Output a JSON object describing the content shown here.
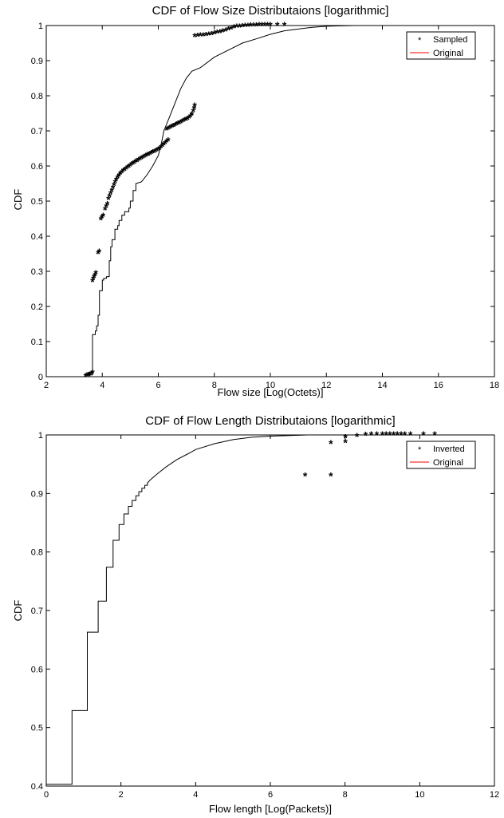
{
  "chart_data": [
    {
      "type": "line",
      "title": "CDF of Flow Size Distributaions [logarithmic]",
      "xlabel": "Flow size [Log(Octets)]",
      "ylabel": "CDF",
      "xlim": [
        2,
        18
      ],
      "ylim": [
        0,
        1
      ],
      "xticks": [
        "2",
        "4",
        "6",
        "8",
        "10",
        "12",
        "14",
        "16",
        "18"
      ],
      "yticks": [
        "0",
        "0.1",
        "0.2",
        "0.3",
        "0.4",
        "0.5",
        "0.6",
        "0.7",
        "0.8",
        "0.9",
        "1"
      ],
      "grid": false,
      "legend_position": "top-right",
      "legend": [
        {
          "label": "Sampled",
          "marker": "*",
          "color": "#0000ff"
        },
        {
          "label": "Original",
          "line": true,
          "color": "#ff0000"
        }
      ],
      "series": [
        {
          "name": "Sampled",
          "style": "markers",
          "color": "#000000",
          "points": [
            [
              3.4,
              0.0
            ],
            [
              3.45,
              0.002
            ],
            [
              3.5,
              0.003
            ],
            [
              3.55,
              0.005
            ],
            [
              3.6,
              0.007
            ],
            [
              3.65,
              0.01
            ],
            [
              3.65,
              0.27
            ],
            [
              3.68,
              0.277
            ],
            [
              3.71,
              0.283
            ],
            [
              3.74,
              0.288
            ],
            [
              3.77,
              0.293
            ],
            [
              3.85,
              0.35
            ],
            [
              3.89,
              0.355
            ],
            [
              3.95,
              0.447
            ],
            [
              3.99,
              0.452
            ],
            [
              4.03,
              0.457
            ],
            [
              4.1,
              0.475
            ],
            [
              4.14,
              0.483
            ],
            [
              4.18,
              0.49
            ],
            [
              4.22,
              0.505
            ],
            [
              4.26,
              0.512
            ],
            [
              4.3,
              0.52
            ],
            [
              4.34,
              0.528
            ],
            [
              4.38,
              0.536
            ],
            [
              4.42,
              0.544
            ],
            [
              4.46,
              0.552
            ],
            [
              4.5,
              0.559
            ],
            [
              4.55,
              0.566
            ],
            [
              4.6,
              0.572
            ],
            [
              4.65,
              0.577
            ],
            [
              4.7,
              0.581
            ],
            [
              4.75,
              0.585
            ],
            [
              4.8,
              0.588
            ],
            [
              4.85,
              0.591
            ],
            [
              4.9,
              0.594
            ],
            [
              4.95,
              0.597
            ],
            [
              5.0,
              0.6
            ],
            [
              5.05,
              0.603
            ],
            [
              5.1,
              0.606
            ],
            [
              5.15,
              0.608
            ],
            [
              5.2,
              0.611
            ],
            [
              5.25,
              0.613
            ],
            [
              5.3,
              0.616
            ],
            [
              5.35,
              0.618
            ],
            [
              5.4,
              0.62
            ],
            [
              5.45,
              0.623
            ],
            [
              5.5,
              0.625
            ],
            [
              5.55,
              0.627
            ],
            [
              5.6,
              0.629
            ],
            [
              5.65,
              0.631
            ],
            [
              5.7,
              0.633
            ],
            [
              5.75,
              0.635
            ],
            [
              5.8,
              0.637
            ],
            [
              5.85,
              0.639
            ],
            [
              5.9,
              0.641
            ],
            [
              5.95,
              0.643
            ],
            [
              6.0,
              0.645
            ],
            [
              6.05,
              0.648
            ],
            [
              6.1,
              0.652
            ],
            [
              6.15,
              0.656
            ],
            [
              6.2,
              0.66
            ],
            [
              6.25,
              0.664
            ],
            [
              6.3,
              0.668
            ],
            [
              6.35,
              0.672
            ],
            [
              6.3,
              0.702
            ],
            [
              6.35,
              0.705
            ],
            [
              6.4,
              0.707
            ],
            [
              6.45,
              0.709
            ],
            [
              6.5,
              0.711
            ],
            [
              6.55,
              0.713
            ],
            [
              6.6,
              0.715
            ],
            [
              6.65,
              0.717
            ],
            [
              6.7,
              0.719
            ],
            [
              6.75,
              0.721
            ],
            [
              6.8,
              0.723
            ],
            [
              6.85,
              0.725
            ],
            [
              6.9,
              0.727
            ],
            [
              6.95,
              0.729
            ],
            [
              7.0,
              0.731
            ],
            [
              7.05,
              0.733
            ],
            [
              7.1,
              0.736
            ],
            [
              7.15,
              0.74
            ],
            [
              7.2,
              0.745
            ],
            [
              7.25,
              0.755
            ],
            [
              7.28,
              0.763
            ],
            [
              7.3,
              0.77
            ],
            [
              7.3,
              0.968
            ],
            [
              7.4,
              0.969
            ],
            [
              7.5,
              0.97
            ],
            [
              7.6,
              0.971
            ],
            [
              7.7,
              0.972
            ],
            [
              7.8,
              0.973
            ],
            [
              7.9,
              0.974
            ],
            [
              8.0,
              0.976
            ],
            [
              8.1,
              0.978
            ],
            [
              8.2,
              0.98
            ],
            [
              8.3,
              0.982
            ],
            [
              8.4,
              0.984
            ],
            [
              8.5,
              0.987
            ],
            [
              8.6,
              0.99
            ],
            [
              8.7,
              0.993
            ],
            [
              8.8,
              0.995
            ],
            [
              8.9,
              0.996
            ],
            [
              9.0,
              0.997
            ],
            [
              9.1,
              0.998
            ],
            [
              9.2,
              0.998
            ],
            [
              9.3,
              0.999
            ],
            [
              9.4,
              0.999
            ],
            [
              9.5,
              0.999
            ],
            [
              9.6,
              1.0
            ],
            [
              9.7,
              1.0
            ],
            [
              9.8,
              1.0
            ],
            [
              9.9,
              1.0
            ],
            [
              10.0,
              1.0
            ],
            [
              10.25,
              1.0
            ],
            [
              10.5,
              1.0
            ]
          ]
        },
        {
          "name": "Original",
          "style": "step-line",
          "color": "#000000",
          "points": [
            [
              3.55,
              0.0
            ],
            [
              3.55,
              0.005
            ],
            [
              3.65,
              0.005
            ],
            [
              3.65,
              0.12
            ],
            [
              3.75,
              0.12
            ],
            [
              3.75,
              0.13
            ],
            [
              3.8,
              0.13
            ],
            [
              3.8,
              0.145
            ],
            [
              3.85,
              0.145
            ],
            [
              3.85,
              0.175
            ],
            [
              3.9,
              0.175
            ],
            [
              3.9,
              0.245
            ],
            [
              4.0,
              0.245
            ],
            [
              4.0,
              0.275
            ],
            [
              4.05,
              0.275
            ],
            [
              4.05,
              0.28
            ],
            [
              4.15,
              0.28
            ],
            [
              4.15,
              0.285
            ],
            [
              4.25,
              0.285
            ],
            [
              4.25,
              0.33
            ],
            [
              4.3,
              0.33
            ],
            [
              4.3,
              0.37
            ],
            [
              4.35,
              0.37
            ],
            [
              4.35,
              0.39
            ],
            [
              4.45,
              0.39
            ],
            [
              4.45,
              0.42
            ],
            [
              4.55,
              0.42
            ],
            [
              4.55,
              0.43
            ],
            [
              4.6,
              0.43
            ],
            [
              4.6,
              0.445
            ],
            [
              4.7,
              0.445
            ],
            [
              4.7,
              0.46
            ],
            [
              4.8,
              0.46
            ],
            [
              4.8,
              0.47
            ],
            [
              4.95,
              0.47
            ],
            [
              4.95,
              0.48
            ],
            [
              5.0,
              0.48
            ],
            [
              5.0,
              0.5
            ],
            [
              5.1,
              0.5
            ],
            [
              5.1,
              0.53
            ],
            [
              5.2,
              0.53
            ],
            [
              5.2,
              0.55
            ],
            [
              5.4,
              0.555
            ],
            [
              5.6,
              0.575
            ],
            [
              5.8,
              0.6
            ],
            [
              6.0,
              0.63
            ],
            [
              6.1,
              0.66
            ],
            [
              6.2,
              0.7
            ],
            [
              6.4,
              0.74
            ],
            [
              6.6,
              0.78
            ],
            [
              6.8,
              0.82
            ],
            [
              7.0,
              0.85
            ],
            [
              7.2,
              0.87
            ],
            [
              7.5,
              0.88
            ],
            [
              8.0,
              0.91
            ],
            [
              8.5,
              0.93
            ],
            [
              9.0,
              0.95
            ],
            [
              9.5,
              0.962
            ],
            [
              10.0,
              0.975
            ],
            [
              10.5,
              0.985
            ],
            [
              11.0,
              0.99
            ],
            [
              11.5,
              0.995
            ],
            [
              12.0,
              0.998
            ],
            [
              12.5,
              0.999
            ],
            [
              13.0,
              1.0
            ],
            [
              14.0,
              1.0
            ]
          ]
        }
      ]
    },
    {
      "type": "line",
      "title": "CDF of Flow Length Distributaions [logarithmic]",
      "xlabel": "Flow length [Log(Packets)]",
      "ylabel": "CDF",
      "xlim": [
        0,
        12
      ],
      "ylim": [
        0.4,
        1
      ],
      "xticks": [
        "0",
        "2",
        "4",
        "6",
        "8",
        "10",
        "12"
      ],
      "yticks": [
        "0.4",
        "0.5",
        "0.6",
        "0.7",
        "0.8",
        "0.9",
        "1"
      ],
      "grid": false,
      "legend_position": "top-right",
      "legend": [
        {
          "label": "Inverted",
          "marker": "*",
          "color": "#0000ff"
        },
        {
          "label": "Original",
          "line": true,
          "color": "#ff0000"
        }
      ],
      "series": [
        {
          "name": "Inverted",
          "style": "markers",
          "color": "#000000",
          "points": [
            [
              6.93,
              0.93
            ],
            [
              7.62,
              0.93
            ],
            [
              7.62,
              0.985
            ],
            [
              8.01,
              0.987
            ],
            [
              8.01,
              0.995
            ],
            [
              8.32,
              0.997
            ],
            [
              8.55,
              0.999
            ],
            [
              8.7,
              1.0
            ],
            [
              8.85,
              1.0
            ],
            [
              9.0,
              1.0
            ],
            [
              9.1,
              1.0
            ],
            [
              9.2,
              1.0
            ],
            [
              9.3,
              1.0
            ],
            [
              9.4,
              1.0
            ],
            [
              9.5,
              1.0
            ],
            [
              9.6,
              1.0
            ],
            [
              9.75,
              1.0
            ],
            [
              10.1,
              1.0
            ],
            [
              10.4,
              1.0
            ]
          ]
        },
        {
          "name": "Original",
          "style": "step-line",
          "color": "#000000",
          "points": [
            [
              0.0,
              0.403
            ],
            [
              0.69,
              0.403
            ],
            [
              0.69,
              0.529
            ],
            [
              1.1,
              0.529
            ],
            [
              1.1,
              0.663
            ],
            [
              1.39,
              0.663
            ],
            [
              1.39,
              0.716
            ],
            [
              1.61,
              0.716
            ],
            [
              1.61,
              0.774
            ],
            [
              1.79,
              0.774
            ],
            [
              1.79,
              0.82
            ],
            [
              1.95,
              0.82
            ],
            [
              1.95,
              0.847
            ],
            [
              2.08,
              0.847
            ],
            [
              2.08,
              0.865
            ],
            [
              2.2,
              0.865
            ],
            [
              2.2,
              0.878
            ],
            [
              2.3,
              0.878
            ],
            [
              2.3,
              0.888
            ],
            [
              2.4,
              0.888
            ],
            [
              2.4,
              0.896
            ],
            [
              2.48,
              0.896
            ],
            [
              2.48,
              0.903
            ],
            [
              2.56,
              0.903
            ],
            [
              2.56,
              0.909
            ],
            [
              2.64,
              0.909
            ],
            [
              2.64,
              0.914
            ],
            [
              2.71,
              0.914
            ],
            [
              2.71,
              0.918
            ],
            [
              2.8,
              0.924
            ],
            [
              3.0,
              0.935
            ],
            [
              3.2,
              0.945
            ],
            [
              3.5,
              0.958
            ],
            [
              3.8,
              0.968
            ],
            [
              4.0,
              0.975
            ],
            [
              4.5,
              0.985
            ],
            [
              5.0,
              0.992
            ],
            [
              5.5,
              0.996
            ],
            [
              6.0,
              0.998
            ],
            [
              6.5,
              0.999
            ],
            [
              7.0,
              1.0
            ],
            [
              8.0,
              1.0
            ],
            [
              10.0,
              1.0
            ]
          ]
        }
      ]
    }
  ]
}
